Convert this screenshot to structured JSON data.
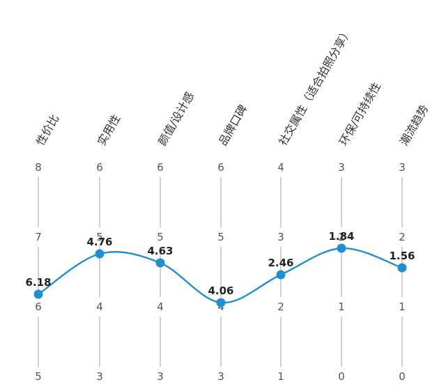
{
  "chart_data": {
    "type": "line",
    "subtype": "parallel-coordinates",
    "color": "#1f8fd0",
    "axes": [
      {
        "label": "性价比",
        "ticks": [
          "8",
          "7",
          "6",
          "5"
        ],
        "range": [
          5,
          8
        ],
        "value": 6.18,
        "value_label": "6.18"
      },
      {
        "label": "实用性",
        "ticks": [
          "6",
          "5",
          "4",
          "3"
        ],
        "range": [
          3,
          6
        ],
        "value": 4.76,
        "value_label": "4.76"
      },
      {
        "label": "颜值/设计感",
        "ticks": [
          "6",
          "5",
          "4",
          "3"
        ],
        "range": [
          3,
          6
        ],
        "value": 4.63,
        "value_label": "4.63"
      },
      {
        "label": "品牌口碑",
        "ticks": [
          "6",
          "5",
          "4",
          "3"
        ],
        "range": [
          3,
          6
        ],
        "value": 4.06,
        "value_label": "4.06"
      },
      {
        "label": "社交属性（适合拍照分享）",
        "ticks": [
          "4",
          "3",
          "2",
          "1"
        ],
        "range": [
          1,
          4
        ],
        "value": 2.46,
        "value_label": "2.46"
      },
      {
        "label": "环保/可持续性",
        "ticks": [
          "3",
          "2",
          "1",
          "0"
        ],
        "range": [
          0,
          3
        ],
        "value": 1.84,
        "value_label": "1.84"
      },
      {
        "label": "潮流趋势",
        "ticks": [
          "3",
          "2",
          "1",
          "0"
        ],
        "range": [
          0,
          3
        ],
        "value": 1.56,
        "value_label": "1.56"
      }
    ]
  }
}
